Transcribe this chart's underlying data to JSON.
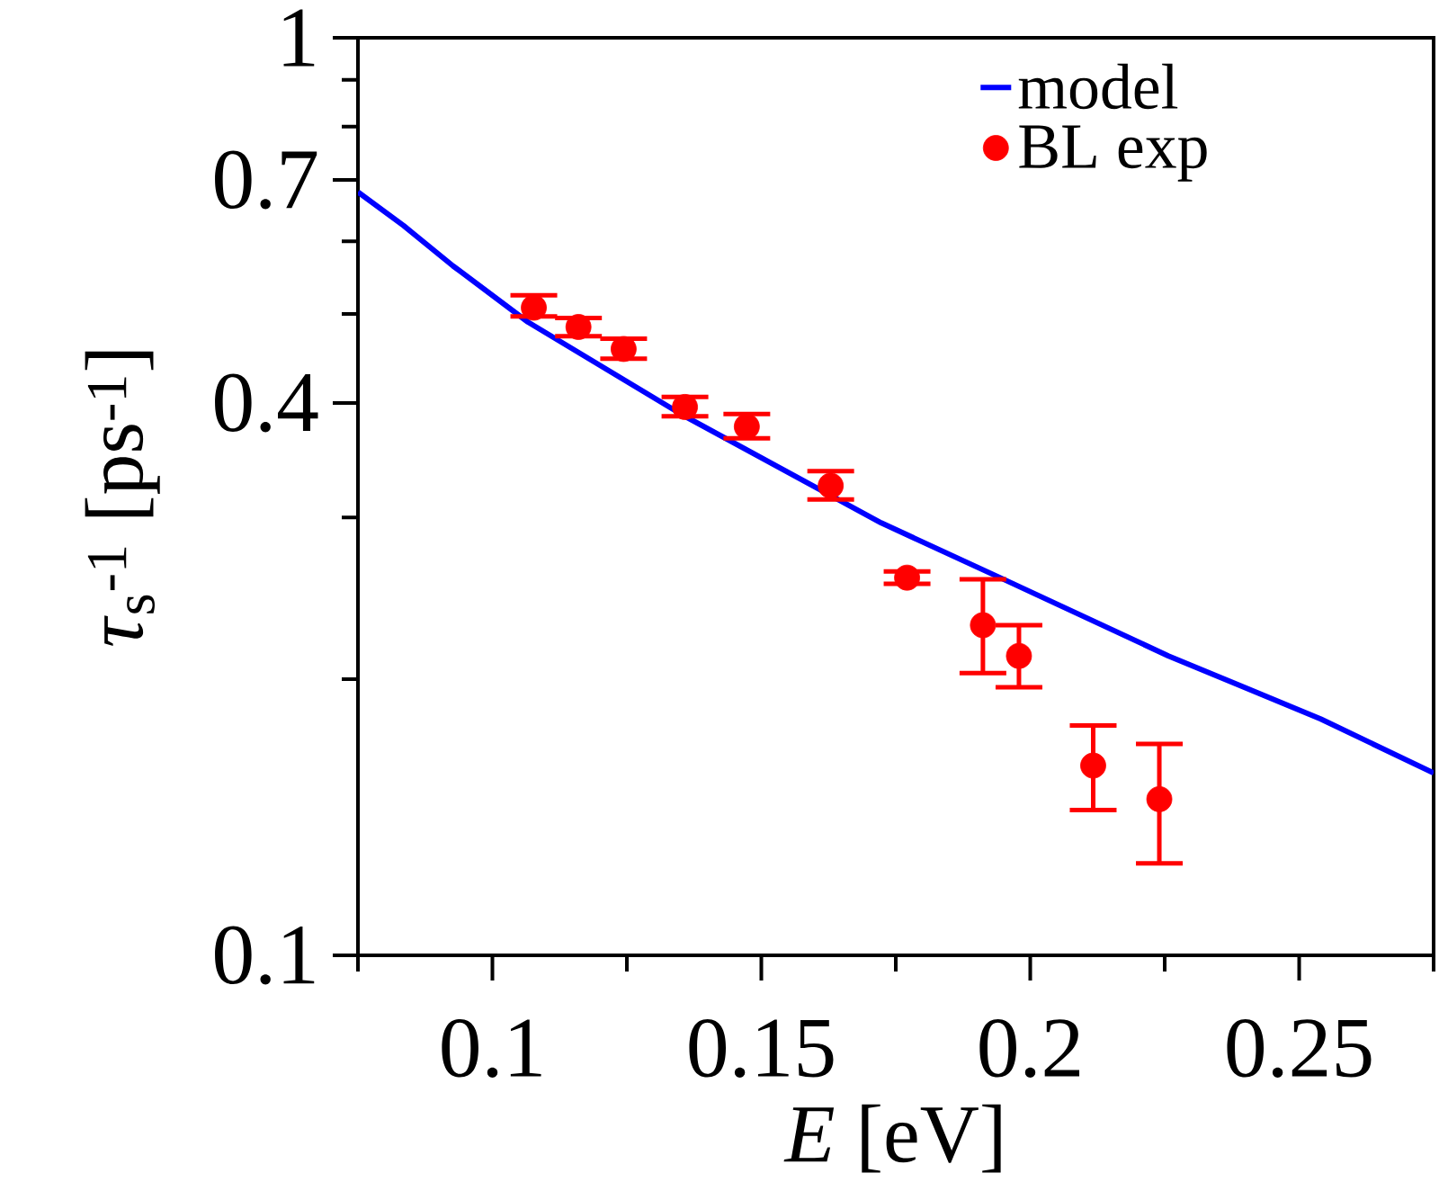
{
  "chart_data": {
    "type": "scatter",
    "xlabel": "*E* [eV]",
    "ylabel": "*τ*$_{s}$$^{-1}$ [ps$^{-1}$]",
    "log": "y",
    "legend": "top right",
    "xlim": [
      0.075,
      0.275
    ],
    "ylim": [
      0.1,
      1
    ],
    "xticks": [
      {
        "value": 0.075,
        "label": null
      },
      0.1,
      {
        "value": 0.125,
        "label": null
      },
      0.15,
      {
        "value": 0.175,
        "label": null
      },
      0.2,
      {
        "value": 0.225,
        "label": null
      },
      0.25,
      {
        "value": 0.275,
        "label": null
      }
    ],
    "yticks": [
      0.1,
      {
        "value": 0.2,
        "label": null
      },
      {
        "value": 0.3,
        "label": null
      },
      0.4,
      {
        "value": 0.5,
        "label": null
      },
      {
        "value": 0.6,
        "label": null
      },
      0.7,
      {
        "value": 0.8,
        "label": null
      },
      {
        "value": 0.9,
        "label": null
      },
      1
    ],
    "series": [
      {
        "name": "model",
        "type": "line",
        "color": "#0000ff",
        "marker": "none",
        "line_style": "solid",
        "x": [
          0.075,
          0.0835,
          0.0927,
          0.1066,
          0.1354,
          0.1723,
          0.195,
          0.2257,
          0.254,
          0.275
        ],
        "values": [
          0.679,
          0.624,
          0.564,
          0.49,
          0.388,
          0.296,
          0.257,
          0.212,
          0.181,
          0.158
        ]
      },
      {
        "name": "BL exp",
        "color": "#ff0000",
        "marker": "circle",
        "x": [
          0.1077,
          0.116,
          0.1244,
          0.1358,
          0.1473,
          0.1629,
          0.1771,
          0.1912,
          0.1979,
          0.2117,
          0.224
        ],
        "values": [
          0.508,
          0.484,
          0.458,
          0.396,
          0.377,
          0.325,
          0.258,
          0.229,
          0.212,
          0.161,
          0.148
        ],
        "errors": [
          [
            0.497,
            0.524
          ],
          [
            0.473,
            0.495
          ],
          [
            0.447,
            0.47
          ],
          [
            0.387,
            0.406
          ],
          [
            0.366,
            0.389
          ],
          [
            0.314,
            0.337
          ],
          [
            0.254,
            0.262
          ],
          [
            0.203,
            0.257
          ],
          [
            0.196,
            0.229
          ],
          [
            0.144,
            0.178
          ],
          [
            0.126,
            0.17
          ]
        ]
      }
    ]
  }
}
